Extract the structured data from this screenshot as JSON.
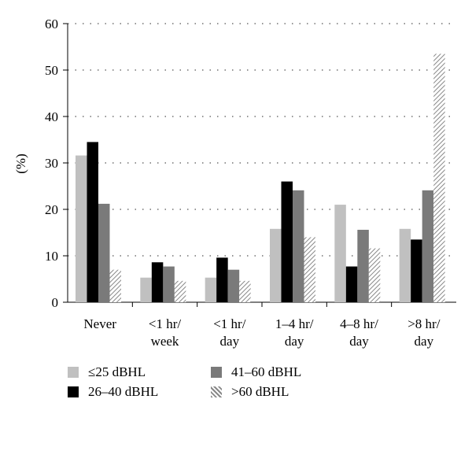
{
  "chart_data": {
    "type": "bar",
    "title": "",
    "xlabel": "",
    "ylabel": "(%)",
    "ylim": [
      0,
      60
    ],
    "yticks": [
      0,
      10,
      20,
      30,
      40,
      50,
      60
    ],
    "grid": "horizontal dotted",
    "categories": [
      [
        "Never"
      ],
      [
        "<1 hr/",
        "week"
      ],
      [
        "<1 hr/",
        "day"
      ],
      [
        "1–4 hr/",
        "day"
      ],
      [
        "4–8 hr/",
        "day"
      ],
      [
        ">8 hr/",
        "day"
      ]
    ],
    "series": [
      {
        "name": "≤25 dBHL",
        "color": "#c0c0c0",
        "pattern": "solid",
        "values": [
          31.6,
          5.3,
          5.3,
          15.8,
          21.0,
          15.8
        ]
      },
      {
        "name": "26–40 dBHL",
        "color": "#000000",
        "pattern": "solid",
        "values": [
          34.5,
          8.6,
          9.6,
          26.0,
          7.7,
          13.5
        ]
      },
      {
        "name": "41–60 dBHL",
        "color": "#7a7a7a",
        "pattern": "solid",
        "values": [
          21.2,
          7.7,
          7.0,
          24.1,
          15.6,
          24.1
        ]
      },
      {
        "name": ">60 dBHL",
        "color": "#888888",
        "pattern": "diagonal-hatch",
        "values": [
          7.0,
          4.6,
          4.6,
          14.0,
          11.6,
          53.5
        ]
      }
    ],
    "legend": {
      "placement": "bottom",
      "rows": [
        [
          0,
          2
        ],
        [
          1,
          3
        ]
      ]
    }
  }
}
